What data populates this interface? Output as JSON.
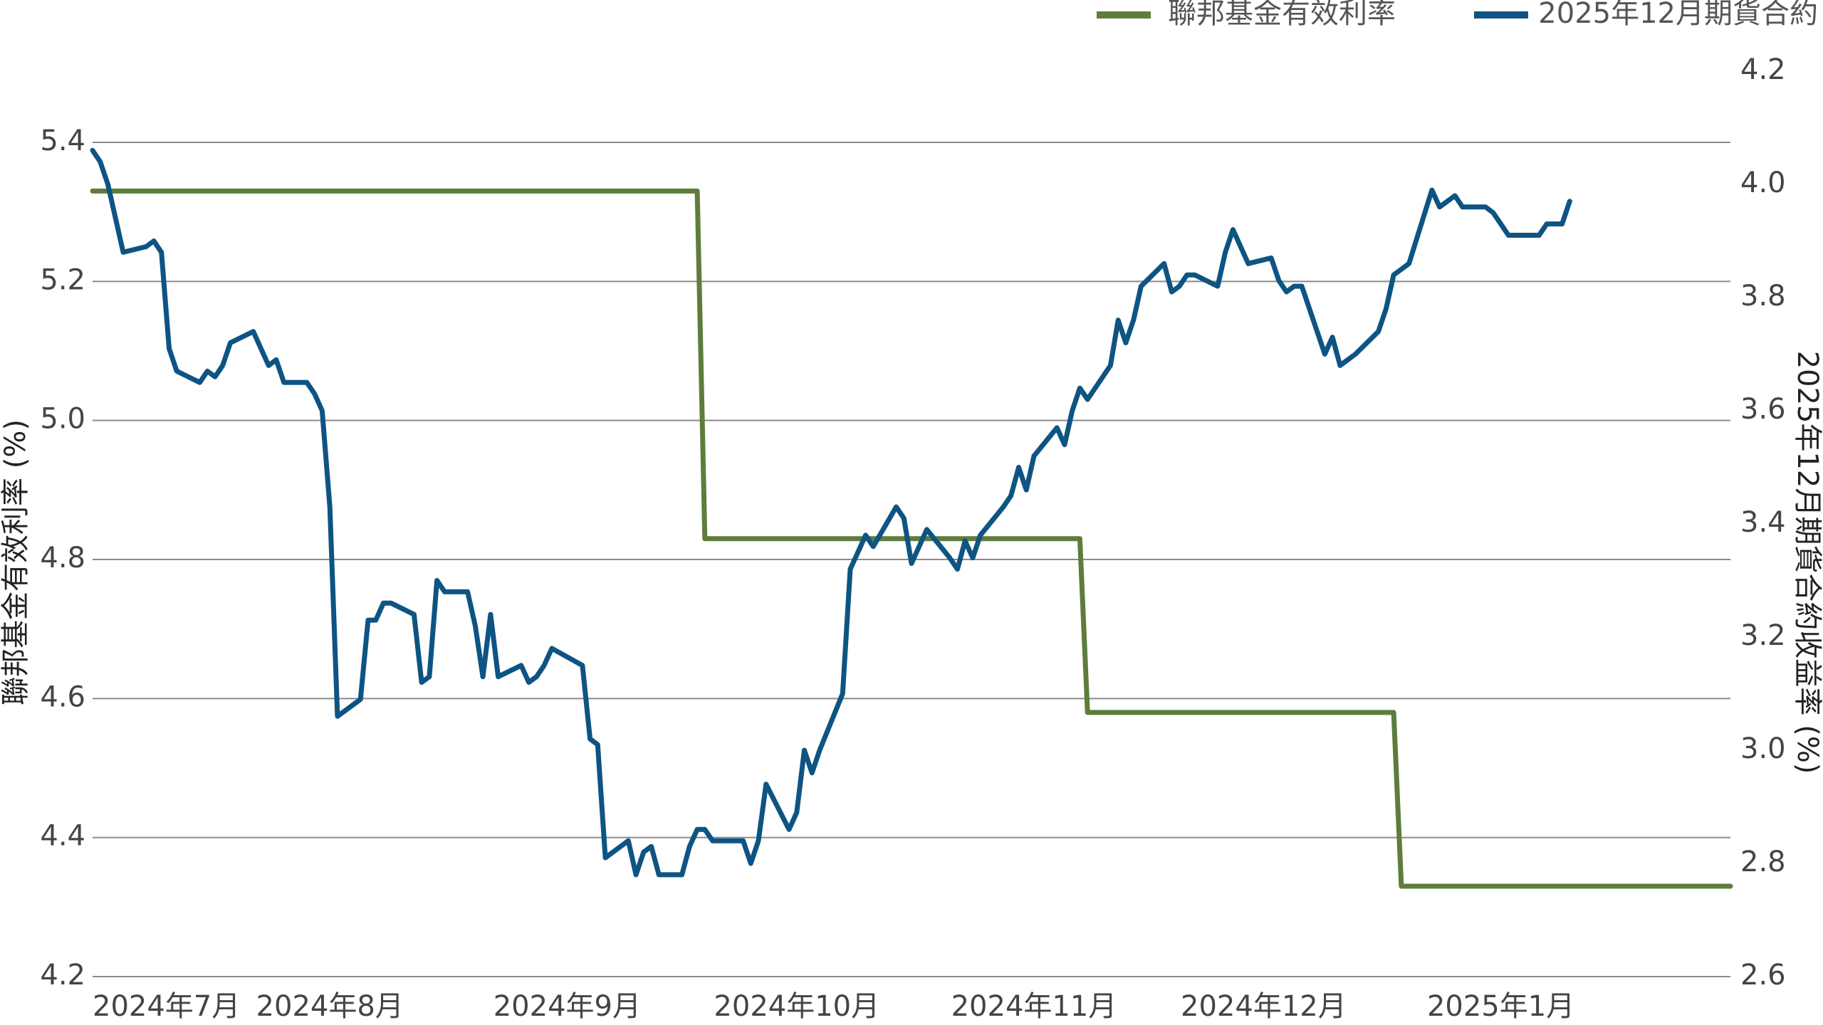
{
  "chart_data": {
    "type": "line",
    "legend": {
      "position": "top-right",
      "entries": [
        {
          "label": "聯邦基金有效利率",
          "color": "#5E7D3C"
        },
        {
          "label": "2025年12月期貨合約",
          "color": "#0E5483"
        }
      ]
    },
    "left_axis": {
      "label": "聯邦基金有效利率 (%)",
      "range": [
        4.2,
        5.4
      ],
      "ticks": [
        "4.2",
        "4.4",
        "4.6",
        "4.8",
        "5.0",
        "5.2",
        "5.4"
      ],
      "tick_values": [
        4.2,
        4.4,
        4.6,
        4.8,
        5.0,
        5.2,
        5.4
      ]
    },
    "right_axis": {
      "label": "2025年12月期貨合約收益率 (%)",
      "range": [
        2.6,
        4.2
      ],
      "ticks": [
        "2.6",
        "2.8",
        "3.0",
        "3.2",
        "3.4",
        "3.6",
        "3.8",
        "4.0",
        "4.2"
      ],
      "tick_values": [
        2.6,
        2.8,
        3.0,
        3.2,
        3.4,
        3.6,
        3.8,
        4.0,
        4.2
      ]
    },
    "x_axis": {
      "range": [
        "2024-07-01",
        "2025-01-31"
      ],
      "ticks": [
        {
          "label": "2024年7月",
          "date": "2024-07-01"
        },
        {
          "label": "2024年8月",
          "date": "2024-08-01"
        },
        {
          "label": "2024年9月",
          "date": "2024-09-01"
        },
        {
          "label": "2024年10月",
          "date": "2024-10-01"
        },
        {
          "label": "2024年11月",
          "date": "2024-11-01"
        },
        {
          "label": "2024年12月",
          "date": "2024-12-01"
        },
        {
          "label": "2025年1月",
          "date": "2025-01-01"
        }
      ]
    },
    "grid": true,
    "series": [
      {
        "name": "聯邦基金有效利率",
        "axis": "left",
        "color": "#5E7D3C",
        "step": true,
        "points": [
          [
            "2024-07-01",
            5.33
          ],
          [
            "2024-09-18",
            5.33
          ],
          [
            "2024-09-19",
            4.83
          ],
          [
            "2024-11-07",
            4.83
          ],
          [
            "2024-11-08",
            4.58
          ],
          [
            "2024-12-18",
            4.58
          ],
          [
            "2024-12-19",
            4.33
          ],
          [
            "2025-01-31",
            4.33
          ]
        ]
      },
      {
        "name": "2025年12月期貨合約",
        "axis": "right",
        "color": "#0E5483",
        "points": [
          [
            "2024-07-01",
            4.06
          ],
          [
            "2024-07-02",
            4.04
          ],
          [
            "2024-07-03",
            4.0
          ],
          [
            "2024-07-05",
            3.88
          ],
          [
            "2024-07-08",
            3.89
          ],
          [
            "2024-07-09",
            3.9
          ],
          [
            "2024-07-10",
            3.88
          ],
          [
            "2024-07-11",
            3.71
          ],
          [
            "2024-07-12",
            3.67
          ],
          [
            "2024-07-15",
            3.65
          ],
          [
            "2024-07-16",
            3.67
          ],
          [
            "2024-07-17",
            3.66
          ],
          [
            "2024-07-18",
            3.68
          ],
          [
            "2024-07-19",
            3.72
          ],
          [
            "2024-07-22",
            3.74
          ],
          [
            "2024-07-23",
            3.71
          ],
          [
            "2024-07-24",
            3.68
          ],
          [
            "2024-07-25",
            3.69
          ],
          [
            "2024-07-26",
            3.65
          ],
          [
            "2024-07-29",
            3.65
          ],
          [
            "2024-07-30",
            3.63
          ],
          [
            "2024-07-31",
            3.6
          ],
          [
            "2024-08-01",
            3.43
          ],
          [
            "2024-08-02",
            3.06
          ],
          [
            "2024-08-05",
            3.09
          ],
          [
            "2024-08-06",
            3.23
          ],
          [
            "2024-08-07",
            3.23
          ],
          [
            "2024-08-08",
            3.26
          ],
          [
            "2024-08-09",
            3.26
          ],
          [
            "2024-08-12",
            3.24
          ],
          [
            "2024-08-13",
            3.12
          ],
          [
            "2024-08-14",
            3.13
          ],
          [
            "2024-08-15",
            3.3
          ],
          [
            "2024-08-16",
            3.28
          ],
          [
            "2024-08-19",
            3.28
          ],
          [
            "2024-08-20",
            3.22
          ],
          [
            "2024-08-21",
            3.13
          ],
          [
            "2024-08-22",
            3.24
          ],
          [
            "2024-08-23",
            3.13
          ],
          [
            "2024-08-26",
            3.15
          ],
          [
            "2024-08-27",
            3.12
          ],
          [
            "2024-08-28",
            3.13
          ],
          [
            "2024-08-29",
            3.15
          ],
          [
            "2024-08-30",
            3.18
          ],
          [
            "2024-09-03",
            3.15
          ],
          [
            "2024-09-04",
            3.02
          ],
          [
            "2024-09-05",
            3.01
          ],
          [
            "2024-09-06",
            2.81
          ],
          [
            "2024-09-09",
            2.84
          ],
          [
            "2024-09-10",
            2.78
          ],
          [
            "2024-09-11",
            2.82
          ],
          [
            "2024-09-12",
            2.83
          ],
          [
            "2024-09-13",
            2.78
          ],
          [
            "2024-09-16",
            2.78
          ],
          [
            "2024-09-17",
            2.83
          ],
          [
            "2024-09-18",
            2.86
          ],
          [
            "2024-09-19",
            2.86
          ],
          [
            "2024-09-20",
            2.84
          ],
          [
            "2024-09-23",
            2.84
          ],
          [
            "2024-09-24",
            2.84
          ],
          [
            "2024-09-25",
            2.8
          ],
          [
            "2024-09-26",
            2.84
          ],
          [
            "2024-09-27",
            2.94
          ],
          [
            "2024-09-30",
            2.86
          ],
          [
            "2024-10-01",
            2.89
          ],
          [
            "2024-10-02",
            3.0
          ],
          [
            "2024-10-03",
            2.96
          ],
          [
            "2024-10-04",
            3.0
          ],
          [
            "2024-10-07",
            3.1
          ],
          [
            "2024-10-08",
            3.32
          ],
          [
            "2024-10-09",
            3.35
          ],
          [
            "2024-10-10",
            3.38
          ],
          [
            "2024-10-11",
            3.36
          ],
          [
            "2024-10-14",
            3.43
          ],
          [
            "2024-10-15",
            3.41
          ],
          [
            "2024-10-16",
            3.33
          ],
          [
            "2024-10-17",
            3.36
          ],
          [
            "2024-10-18",
            3.39
          ],
          [
            "2024-10-21",
            3.34
          ],
          [
            "2024-10-22",
            3.32
          ],
          [
            "2024-10-23",
            3.37
          ],
          [
            "2024-10-24",
            3.34
          ],
          [
            "2024-10-25",
            3.38
          ],
          [
            "2024-10-28",
            3.43
          ],
          [
            "2024-10-29",
            3.45
          ],
          [
            "2024-10-30",
            3.5
          ],
          [
            "2024-10-31",
            3.46
          ],
          [
            "2024-11-01",
            3.52
          ],
          [
            "2024-11-04",
            3.57
          ],
          [
            "2024-11-05",
            3.54
          ],
          [
            "2024-11-06",
            3.6
          ],
          [
            "2024-11-07",
            3.64
          ],
          [
            "2024-11-08",
            3.62
          ],
          [
            "2024-11-11",
            3.68
          ],
          [
            "2024-11-12",
            3.76
          ],
          [
            "2024-11-13",
            3.72
          ],
          [
            "2024-11-14",
            3.76
          ],
          [
            "2024-11-15",
            3.82
          ],
          [
            "2024-11-18",
            3.86
          ],
          [
            "2024-11-19",
            3.81
          ],
          [
            "2024-11-20",
            3.82
          ],
          [
            "2024-11-21",
            3.84
          ],
          [
            "2024-11-22",
            3.84
          ],
          [
            "2024-11-25",
            3.82
          ],
          [
            "2024-11-26",
            3.88
          ],
          [
            "2024-11-27",
            3.92
          ],
          [
            "2024-11-29",
            3.86
          ],
          [
            "2024-12-02",
            3.87
          ],
          [
            "2024-12-03",
            3.83
          ],
          [
            "2024-12-04",
            3.81
          ],
          [
            "2024-12-05",
            3.82
          ],
          [
            "2024-12-06",
            3.82
          ],
          [
            "2024-12-09",
            3.7
          ],
          [
            "2024-12-10",
            3.73
          ],
          [
            "2024-12-11",
            3.68
          ],
          [
            "2024-12-12",
            3.69
          ],
          [
            "2024-12-13",
            3.7
          ],
          [
            "2024-12-16",
            3.74
          ],
          [
            "2024-12-17",
            3.78
          ],
          [
            "2024-12-18",
            3.84
          ],
          [
            "2024-12-19",
            3.85
          ],
          [
            "2024-12-20",
            3.86
          ],
          [
            "2024-12-23",
            3.99
          ],
          [
            "2024-12-24",
            3.96
          ],
          [
            "2024-12-26",
            3.98
          ],
          [
            "2024-12-27",
            3.96
          ],
          [
            "2024-12-30",
            3.96
          ],
          [
            "2024-12-31",
            3.95
          ],
          [
            "2025-01-02",
            3.91
          ],
          [
            "2025-01-03",
            3.91
          ],
          [
            "2025-01-06",
            3.91
          ],
          [
            "2025-01-07",
            3.93
          ],
          [
            "2025-01-08",
            3.93
          ],
          [
            "2025-01-09",
            3.93
          ],
          [
            "2025-01-10",
            3.97
          ]
        ]
      }
    ]
  }
}
